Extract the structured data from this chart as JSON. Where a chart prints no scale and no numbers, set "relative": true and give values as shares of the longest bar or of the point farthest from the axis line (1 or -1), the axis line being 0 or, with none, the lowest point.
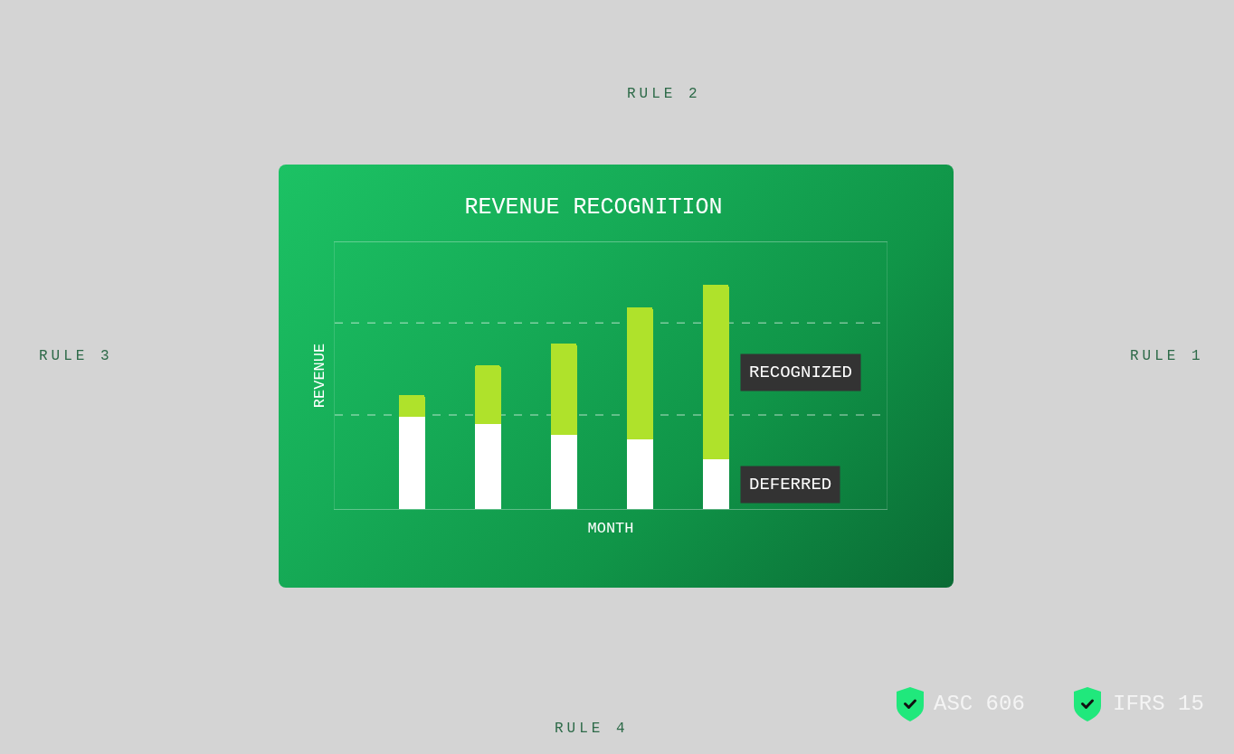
{
  "chart_data": {
    "type": "bar",
    "title": "REVENUE RECOGNITION",
    "xlabel": "MONTH",
    "ylabel": "REVENUE",
    "categories": [
      null,
      null,
      null,
      null,
      null
    ],
    "stacked": true,
    "relative": true,
    "series": [
      {
        "name": "DEFERRED",
        "color": "#ffffff",
        "values": [
          0.41,
          0.38,
          0.33,
          0.31,
          0.22
        ]
      },
      {
        "name": "RECOGNIZED",
        "color": "#afe22b",
        "values": [
          0.1,
          0.26,
          0.41,
          0.59,
          0.78
        ]
      }
    ],
    "ref_lines": [
      {
        "axis": "y",
        "value": 0.42,
        "color": "#ffffff",
        "line_style": "dashed"
      },
      {
        "axis": "y",
        "value": 0.83,
        "color": "#ffffff",
        "line_style": "dashed"
      }
    ],
    "annotations": [
      "RULE 2",
      "RULE 3",
      "RULE 1",
      "ASC 606",
      "IFRS 15",
      "RULE 4"
    ]
  }
}
